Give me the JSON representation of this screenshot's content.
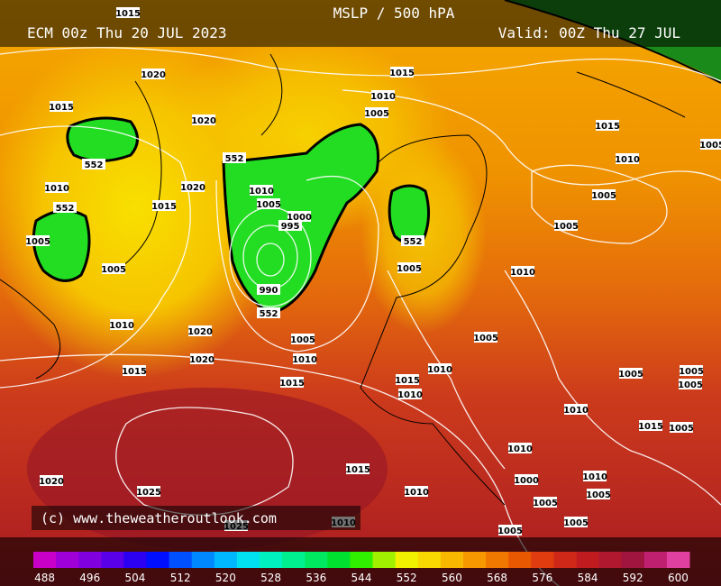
{
  "header": {
    "title": "MSLP / 500 hPA",
    "run": "ECM 00z Thu 20 JUL 2023",
    "valid": "Valid: 00Z Thu 27 JUL"
  },
  "credit": "(c) www.theweatheroutlook.com",
  "isobar_labels": [
    1015,
    1020,
    1015,
    1020,
    552,
    552,
    1010,
    1020,
    1010,
    1005,
    1015,
    552,
    1000,
    995,
    1005,
    1005,
    990,
    552,
    1010,
    1020,
    1005,
    1010,
    1020,
    1015,
    1015,
    1015,
    1010,
    1005,
    1015,
    1010,
    1005,
    1005,
    552,
    1005,
    1010,
    1005,
    1010,
    1015,
    1010,
    1005,
    1005,
    1005,
    1010,
    1015,
    1005,
    1010,
    1000,
    1010,
    1015,
    1020,
    1025,
    1010,
    1005,
    1005,
    1025,
    1010,
    1005,
    1005,
    1005
  ],
  "legend": {
    "ticks": [
      488,
      496,
      504,
      512,
      520,
      528,
      536,
      544,
      552,
      560,
      568,
      576,
      584,
      592,
      600
    ],
    "colors": [
      "#c800c8",
      "#a000d8",
      "#8000e0",
      "#5a00e8",
      "#2c00f0",
      "#0010ff",
      "#0050ff",
      "#0088ff",
      "#00b8ff",
      "#00e0f0",
      "#00f0c0",
      "#00f090",
      "#00e860",
      "#00e030",
      "#30f000",
      "#a0f000",
      "#f0f000",
      "#f8d800",
      "#f8b800",
      "#f89800",
      "#f07800",
      "#e85800",
      "#e03c10",
      "#d02818",
      "#c01c20",
      "#b01830",
      "#a01440",
      "#c02070",
      "#e040a0"
    ]
  }
}
